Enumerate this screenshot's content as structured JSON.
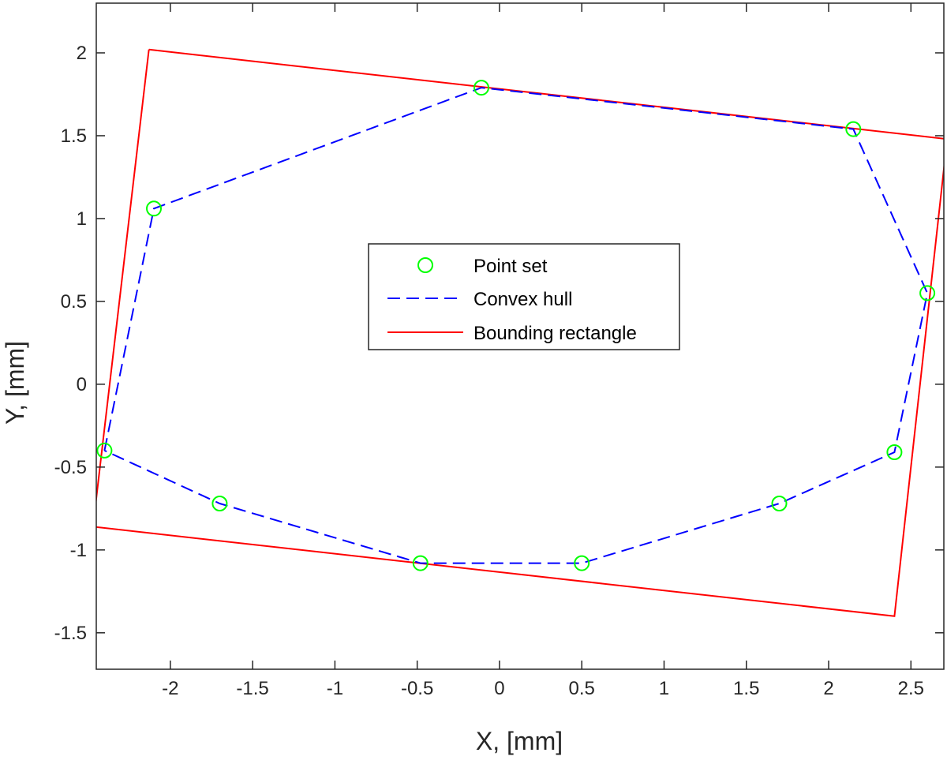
{
  "chart_data": {
    "type": "scatter",
    "xlabel": "X, [mm]",
    "ylabel": "Y, [mm]",
    "xlim": [
      -2.45,
      2.7
    ],
    "ylim": [
      -1.72,
      2.3
    ],
    "xticks": [
      -2,
      -1.5,
      -1,
      -0.5,
      0,
      0.5,
      1,
      1.5,
      2,
      2.5
    ],
    "xtick_labels": [
      "-2",
      "-1.5",
      "-1",
      "-0.5",
      "0",
      "0.5",
      "1",
      "1.5",
      "2",
      "2.5"
    ],
    "yticks": [
      -1.5,
      -1,
      -0.5,
      0,
      0.5,
      1,
      1.5,
      2
    ],
    "ytick_labels": [
      "-1.5",
      "-1",
      "-0.5",
      "0",
      "0.5",
      "1",
      "1.5",
      "2"
    ],
    "grid": false,
    "legend_position": "center",
    "series": [
      {
        "name": "Point set",
        "kind": "markers",
        "marker": "circle",
        "color": "#00ff00",
        "x": [
          -2.4,
          -2.1,
          -0.11,
          2.15,
          2.6,
          2.4,
          1.7,
          0.5,
          -0.48,
          -1.7
        ],
        "y": [
          -0.4,
          1.06,
          1.79,
          1.54,
          0.55,
          -0.41,
          -0.72,
          -1.08,
          -1.08,
          -0.72
        ]
      },
      {
        "name": "Convex hull",
        "kind": "dashed-line",
        "color": "#0000ff",
        "x": [
          -2.4,
          -2.1,
          -0.11,
          2.15,
          2.6,
          2.4,
          1.7,
          0.5,
          -0.48,
          -1.7,
          -2.4
        ],
        "y": [
          -0.4,
          1.06,
          1.79,
          1.54,
          0.55,
          -0.41,
          -0.72,
          -1.08,
          -1.08,
          -0.72,
          -0.4
        ]
      },
      {
        "name": "Bounding rectangle",
        "kind": "solid-line",
        "color": "#ff0000",
        "x": [
          -2.13,
          2.72,
          2.4,
          -2.47,
          -2.13
        ],
        "y": [
          2.02,
          1.48,
          -1.4,
          -0.86,
          2.02
        ]
      }
    ]
  }
}
